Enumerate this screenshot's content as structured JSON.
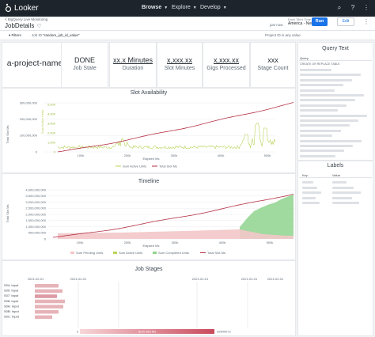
{
  "topbar": {
    "logo": "Looker",
    "nav": [
      "Browse",
      "Explore",
      "Develop"
    ]
  },
  "header": {
    "breadcrumb": "<  BigQuery Live Monitoring",
    "title": "JobDetails",
    "tz_label": "Each Tile's Time Zone",
    "tz_value": "America - New York",
    "refreshed": "just now",
    "run_label": "Run",
    "edit_label": "Edit"
  },
  "filters": {
    "label": "Filters",
    "job_id_label": "Job ID",
    "job_id_value": "\"random_job_id_value\"",
    "project_filter": "Project ID is any value"
  },
  "kpis": [
    {
      "value": "a-project-name",
      "label": ""
    },
    {
      "value": "DONE",
      "label": "Job State"
    },
    {
      "value": "xx.x Minutes",
      "label": "Duration"
    },
    {
      "value": "x,xxx.xx",
      "label": "Slot Minutes"
    },
    {
      "value": "x,xxx.xx",
      "label": "Gigs Processed"
    },
    {
      "value": "xxx",
      "label": "Stage Count"
    }
  ],
  "slot_availability": {
    "title": "Slot Availability",
    "yleft_label": "Total Slot Ms",
    "yright_label": "Sum Active Units",
    "xlabel": "Elapsed Ms",
    "yleft_ticks": [
      "0",
      "100,000,000",
      "200,000,000",
      "300,000,000"
    ],
    "yright_ticks": [
      "0",
      "1,000",
      "2,000",
      "3,000",
      "4,000",
      "5,000"
    ],
    "x_ticks": [
      "100k",
      "200k",
      "300k",
      "400k",
      "500k"
    ],
    "legend": [
      "Sum Active Units",
      "Total Slot Ms"
    ],
    "colors": {
      "active": "#b8d35a",
      "total": "#b53044"
    }
  },
  "timeline": {
    "title": "Timeline",
    "ylabel": "Total Slot Ms",
    "xlabel": "Elapsed Ms",
    "y_ticks": [
      "0",
      "500,000,000",
      "1,000,000,000",
      "1,500,000,000",
      "2,000,000,000",
      "2,500,000,000",
      "3,000,000,000",
      "3,500,000,000",
      "4,000,000,000"
    ],
    "x_ticks": [
      "100k",
      "200k",
      "300k",
      "400k",
      "500k"
    ],
    "legend": [
      "Sum Pending Units",
      "Sum Active Units",
      "Sum Completed Units",
      "Total Slot Ms"
    ],
    "colors": {
      "pending": "#f3c6c8",
      "active": "#b8d35a",
      "completed": "#8fd48e",
      "total": "#b53044"
    }
  },
  "job_stages": {
    "title": "Job Stages",
    "date_ticks": [
      "2021-02-01",
      "2021-02-01",
      "2021-02-01",
      "2021-02-01",
      "2021-02-01"
    ],
    "stages": [
      "S04: Input",
      "S09: Input",
      "S07: Input",
      "S08: Input",
      "S0A: Input",
      "S0B: Input",
      "S0C: Input"
    ],
    "legend_label": "Sum Slot Ms",
    "legend_min": "0",
    "legend_max": "92849072"
  },
  "query_text": {
    "title": "Query Text",
    "column": "Query",
    "first_row": "CREATE OR REPLACE TABLE"
  },
  "labels": {
    "title": "Labels",
    "columns": [
      "Key",
      "Value"
    ]
  }
}
